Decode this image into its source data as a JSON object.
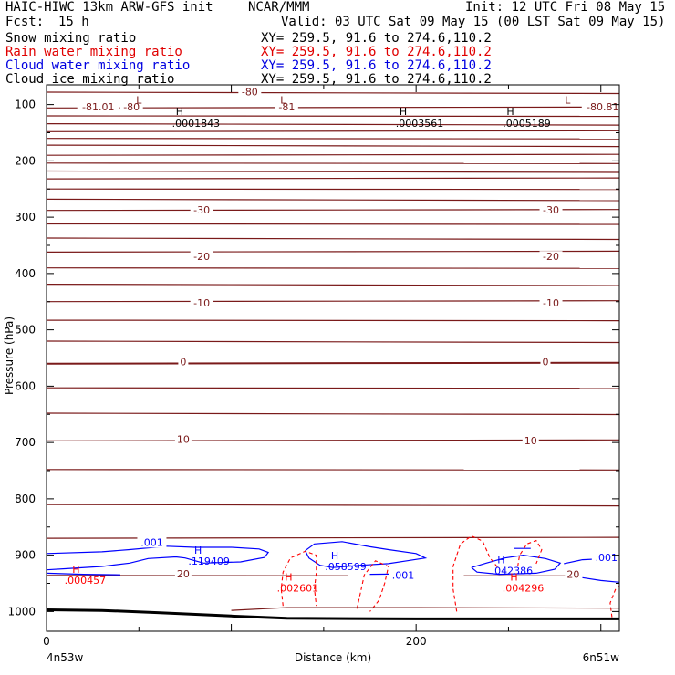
{
  "header": {
    "title": "HAIC-HIWC 13km ARW-GFS init",
    "org": "NCAR/MMM",
    "init": "Init: 12 UTC Fri 08 May 15",
    "fcst_label": "Fcst:",
    "fcst_value": "15 h",
    "valid": "Valid: 03 UTC Sat 09 May 15 (00 LST Sat 09 May 15)"
  },
  "legend": [
    {
      "label": "Snow mixing ratio",
      "xy": "XY= 259.5, 91.6 to 274.6,110.2",
      "color": "#000000"
    },
    {
      "label": "Rain water mixing ratio",
      "xy": "XY= 259.5, 91.6 to 274.6,110.2",
      "color": "#ff0000"
    },
    {
      "label": "Cloud water mixing ratio",
      "xy": "XY= 259.5, 91.6 to 274.6,110.2",
      "color": "#0000ff"
    },
    {
      "label": "Cloud ice mixing ratio",
      "xy": "XY= 259.5, 91.6 to 274.6,110.2",
      "color": "#000000"
    }
  ],
  "chart_data": {
    "type": "line",
    "xlabel": "Distance (km)",
    "ylabel": "Pressure (hPa)",
    "xlim": [
      0,
      310
    ],
    "ylim": [
      1035,
      65
    ],
    "x_ticks": [
      0,
      200
    ],
    "y_ticks": [
      100,
      200,
      300,
      400,
      500,
      600,
      700,
      800,
      900,
      1000
    ],
    "x_endpoints": {
      "left": "4n53w",
      "right": "6n51w"
    },
    "temperature_color": "#7a1a1a",
    "temperature_isotherms": [
      {
        "label": "-80",
        "x": 110,
        "p": 80
      },
      {
        "label": "-81.01",
        "x": 28,
        "p": 107
      },
      {
        "label": "-80",
        "x": 46,
        "p": 107
      },
      {
        "label": "-81",
        "x": 130,
        "p": 107
      },
      {
        "label": "-80.81",
        "x": 301,
        "p": 107
      },
      {
        "label": "-30",
        "x": 84,
        "p": 290
      },
      {
        "label": "-30",
        "x": 273,
        "p": 290
      },
      {
        "label": "-20",
        "x": 84,
        "p": 373
      },
      {
        "label": "-20",
        "x": 273,
        "p": 373
      },
      {
        "label": "-10",
        "x": 84,
        "p": 455
      },
      {
        "label": "-10",
        "x": 273,
        "p": 455
      },
      {
        "label": "0",
        "x": 74,
        "p": 560
      },
      {
        "label": "0",
        "x": 270,
        "p": 560
      },
      {
        "label": "10",
        "x": 74,
        "p": 697
      },
      {
        "label": "10",
        "x": 262,
        "p": 700
      },
      {
        "label": "20",
        "x": 74,
        "p": 936
      },
      {
        "label": "20",
        "x": 285,
        "p": 937
      }
    ],
    "temperature_extrema": [
      {
        "type": "L",
        "x": 50,
        "p": 92
      },
      {
        "type": "L",
        "x": 128,
        "p": 92
      },
      {
        "type": "L",
        "x": 282,
        "p": 92
      },
      {
        "type": "H",
        "x": 72,
        "p": 112,
        "value": ".0001843"
      },
      {
        "type": "H",
        "x": 193,
        "p": 112,
        "value": ".0003561"
      },
      {
        "type": "H",
        "x": 251,
        "p": 112,
        "value": ".0005189"
      }
    ],
    "cloud_water": {
      "color": "#0000ff",
      "contour_labels": [
        {
          "label": ".001",
          "x": 57,
          "p": 880
        },
        {
          "label": ".001",
          "x": 193,
          "p": 939
        },
        {
          "label": ".001",
          "x": 303,
          "p": 907
        }
      ],
      "maxima": [
        {
          "type": "H",
          "x": 82,
          "p": 897,
          "value": ".119409"
        },
        {
          "type": "H",
          "x": 156,
          "p": 907,
          "value": ".058599"
        },
        {
          "type": "H",
          "x": 246,
          "p": 914,
          "value": ".042386"
        }
      ]
    },
    "rain_water": {
      "color": "#ff0000",
      "maxima": [
        {
          "type": "H",
          "x": 16,
          "p": 931,
          "value": ".000457"
        },
        {
          "type": "H",
          "x": 131,
          "p": 945,
          "value": ".002601"
        },
        {
          "type": "H",
          "x": 253,
          "p": 945,
          "value": ".004296"
        }
      ]
    },
    "terrain": [
      [
        0,
        997
      ],
      [
        30,
        998
      ],
      [
        60,
        1002
      ],
      [
        100,
        1008
      ],
      [
        130,
        1012
      ],
      [
        200,
        1013
      ],
      [
        310,
        1013
      ]
    ]
  }
}
